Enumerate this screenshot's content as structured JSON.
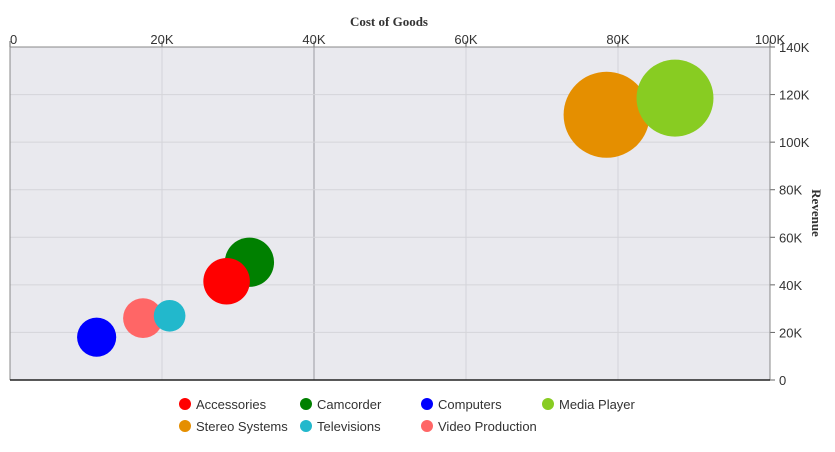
{
  "chart_data": {
    "type": "scatter",
    "subtype": "bubble",
    "xlabel": "Cost of Goods",
    "ylabel": "Revenue",
    "xlim": [
      0,
      100000
    ],
    "ylim": [
      0,
      140000
    ],
    "x_ticks": [
      "0",
      "20K",
      "40K",
      "60K",
      "80K",
      "100K"
    ],
    "y_ticks": [
      "0",
      "20K",
      "40K",
      "60K",
      "80K",
      "100K",
      "120K",
      "140K"
    ],
    "x_axis_position": "top",
    "y_axis_position": "right",
    "grid": true,
    "legend_position": "bottom",
    "series": [
      {
        "name": "Accessories",
        "color": "#ff0000",
        "x": 28500,
        "y": 41500,
        "size": 4.1
      },
      {
        "name": "Camcorder",
        "color": "#008000",
        "x": 31500,
        "y": 49500,
        "size": 4.6
      },
      {
        "name": "Computers",
        "color": "#0000ff",
        "x": 11400,
        "y": 18000,
        "size": 2.9
      },
      {
        "name": "Media Player",
        "color": "#88cc22",
        "x": 87500,
        "y": 118500,
        "size": 11.2
      },
      {
        "name": "Stereo Systems",
        "color": "#e58f00",
        "x": 78500,
        "y": 111500,
        "size": 14.0
      },
      {
        "name": "Televisions",
        "color": "#22b8cc",
        "x": 21000,
        "y": 27000,
        "size": 1.9
      },
      {
        "name": "Video Production",
        "color": "#ff6666",
        "x": 17500,
        "y": 26000,
        "size": 3.0
      }
    ]
  }
}
